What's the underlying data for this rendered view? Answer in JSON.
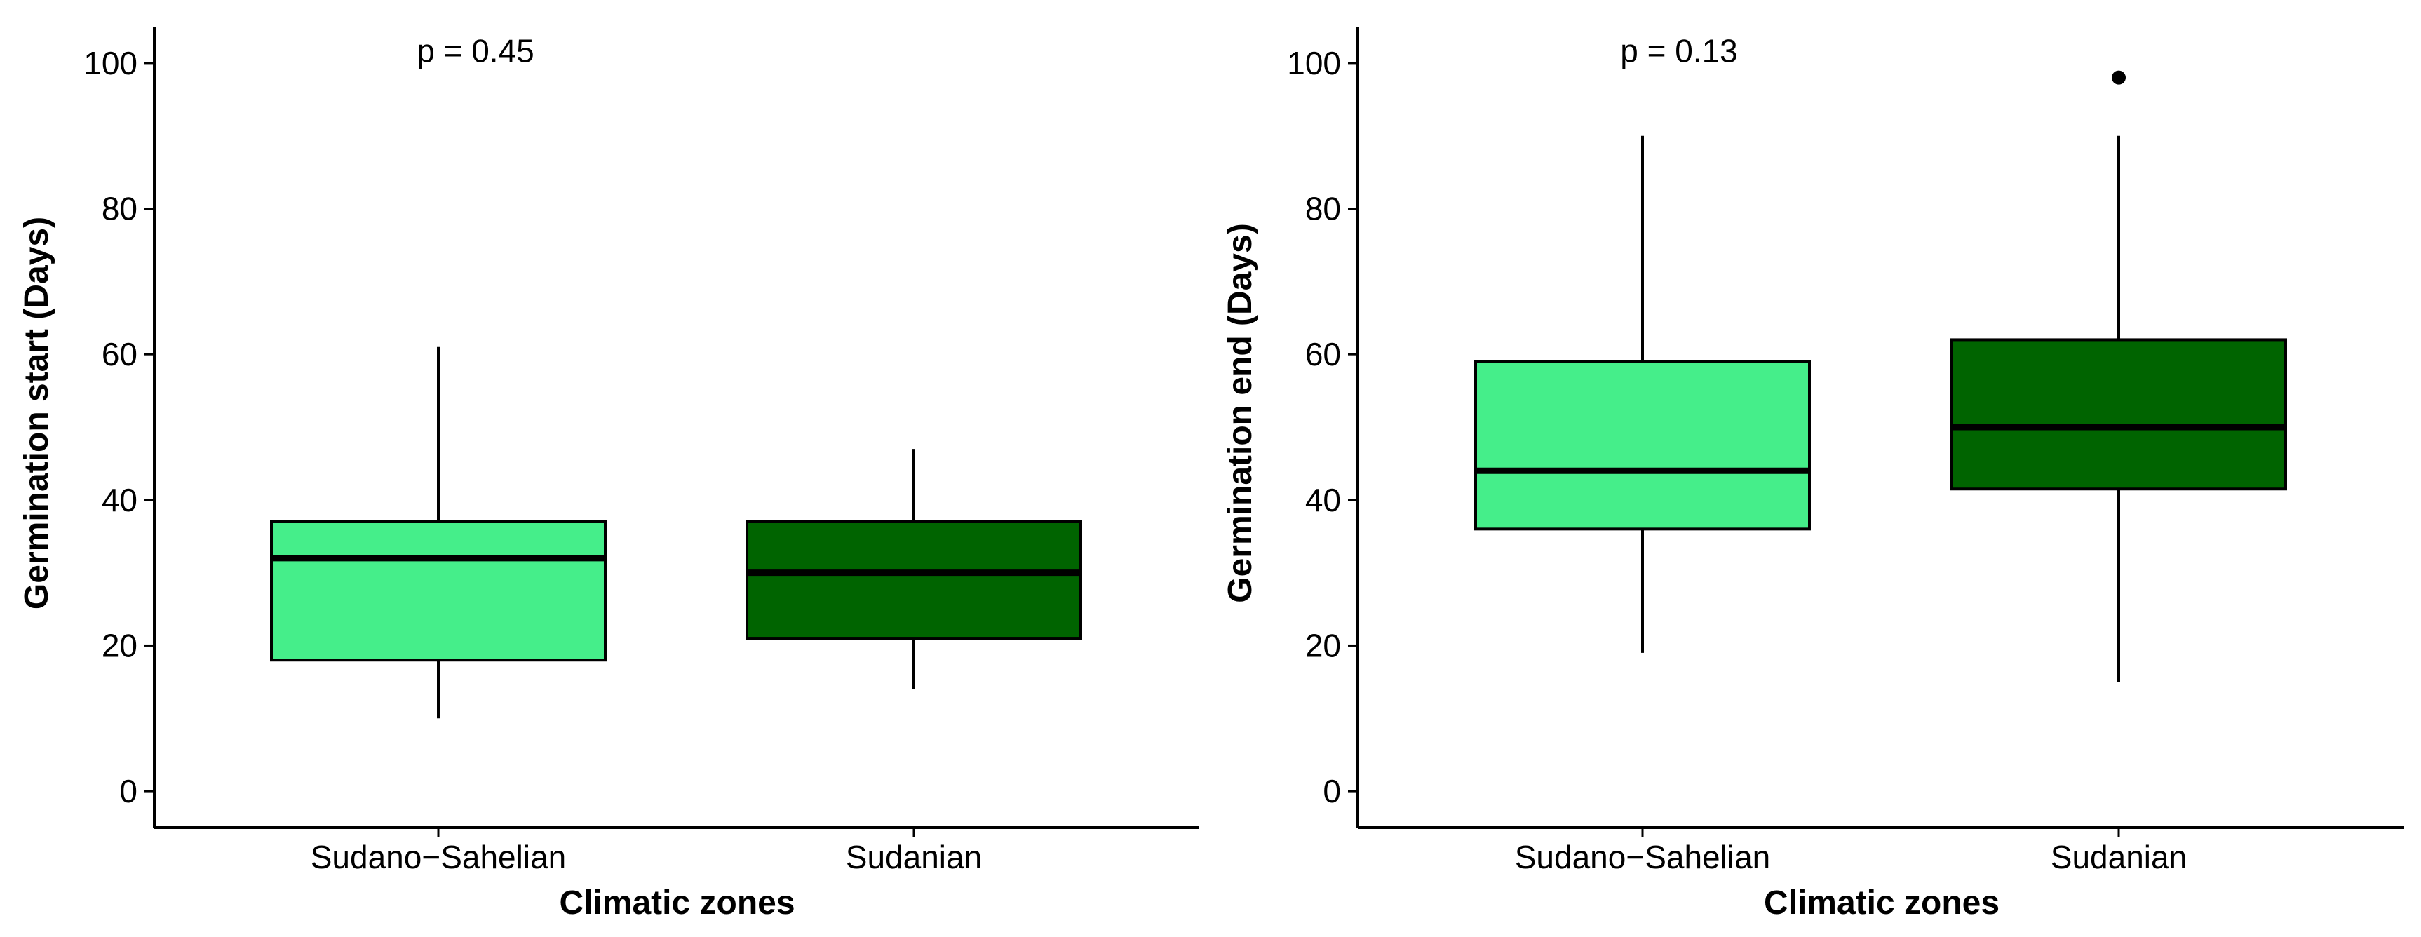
{
  "chart_data": [
    {
      "type": "box",
      "panel": "left",
      "ylabel": "Germination start (Days)",
      "xlabel": "Climatic zones",
      "ylim": [
        -5,
        105
      ],
      "yticks": [
        0,
        20,
        40,
        60,
        80,
        100
      ],
      "categories": [
        "Sudano−Sahelian",
        "Sudanian"
      ],
      "boxes": [
        {
          "category": "Sudano−Sahelian",
          "whisker_low": 10,
          "q1": 18,
          "median": 32,
          "q3": 37,
          "whisker_high": 61,
          "outliers": [],
          "color": "#45ee8a"
        },
        {
          "category": "Sudanian",
          "whisker_low": 14,
          "q1": 21,
          "median": 30,
          "q3": 37,
          "whisker_high": 47,
          "outliers": [],
          "color": "#006400"
        }
      ],
      "annotation": "p = 0.45",
      "annotation_value": 101
    },
    {
      "type": "box",
      "panel": "right",
      "ylabel": "Germination end (Days)",
      "xlabel": "Climatic zones",
      "ylim": [
        -5,
        105
      ],
      "yticks": [
        0,
        20,
        40,
        60,
        80,
        100
      ],
      "categories": [
        "Sudano−Sahelian",
        "Sudanian"
      ],
      "boxes": [
        {
          "category": "Sudano−Sahelian",
          "whisker_low": 19,
          "q1": 36,
          "median": 44,
          "q3": 59,
          "whisker_high": 90,
          "outliers": [],
          "color": "#45ee8a"
        },
        {
          "category": "Sudanian",
          "whisker_low": 15,
          "q1": 41.5,
          "median": 50,
          "q3": 62,
          "whisker_high": 90,
          "outliers": [
            98
          ],
          "color": "#006400"
        }
      ],
      "annotation": "p = 0.13",
      "annotation_value": 101
    }
  ]
}
